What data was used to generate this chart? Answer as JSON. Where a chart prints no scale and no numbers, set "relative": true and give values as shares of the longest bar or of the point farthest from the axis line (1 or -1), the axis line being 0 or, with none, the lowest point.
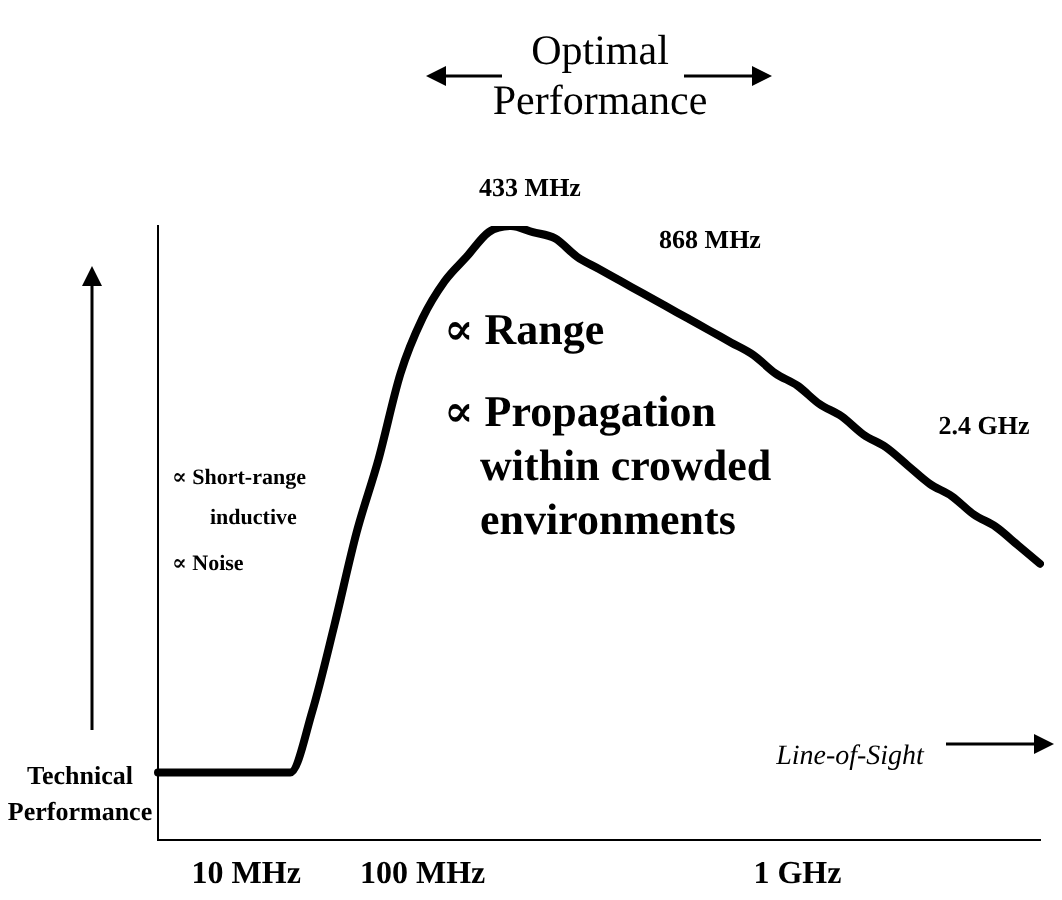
{
  "chart_data": {
    "type": "line",
    "relative": true,
    "ylabel": "Technical Performance",
    "categories": [
      null,
      null,
      null,
      null,
      "10 MHz",
      null,
      null,
      null,
      null,
      null,
      null,
      null,
      "100 MHz",
      null,
      null,
      null,
      null,
      null,
      null,
      null,
      null,
      null,
      null,
      null,
      null,
      null,
      null,
      null,
      null,
      "1 GHz",
      null,
      null,
      null,
      null,
      null,
      null,
      null,
      null,
      null,
      null,
      null
    ],
    "series": [
      {
        "color": "#000000",
        "values": [
          0.11,
          0.11,
          0.11,
          0.11,
          0.11,
          0.11,
          0.11,
          0.21,
          0.35,
          0.5,
          0.62,
          0.76,
          0.85,
          0.91,
          0.95,
          0.99,
          1,
          0.99,
          0.98,
          0.95,
          0.93,
          0.91,
          0.89,
          0.87,
          0.85,
          0.83,
          0.81,
          0.79,
          0.76,
          0.74,
          0.71,
          0.69,
          0.66,
          0.64,
          0.61,
          0.58,
          0.56,
          0.53,
          0.51,
          0.48,
          0.45
        ]
      }
    ],
    "annotations": [
      "Optimal Performance",
      "433 MHz",
      "868 MHz",
      "2.4 GHz",
      "∝ Range",
      "∝ Propagation within crowded environments",
      "∝ Short-range inductive",
      "∝ Noise",
      "Line-of-Sight"
    ]
  }
}
